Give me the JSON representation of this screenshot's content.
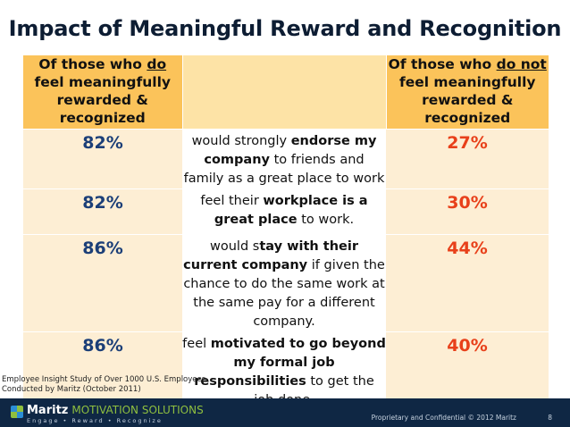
{
  "slide": {
    "title": "Impact of Meaningful Reward and Recognition",
    "header": {
      "left": {
        "pre": "Of those who ",
        "underlined": "do",
        "post": " feel meaningfully rewarded & recognized"
      },
      "right": {
        "pre": "Of those who ",
        "underlined": "do not",
        "post": " feel meaningfully rewarded & recognized"
      }
    },
    "rows": [
      {
        "left_pct": "82%",
        "right_pct": "27%",
        "desc": [
          {
            "text": "would strongly ",
            "bold": false
          },
          {
            "text": "endorse my company",
            "bold": true
          },
          {
            "text": " to friends and family as a great place to work",
            "bold": false
          }
        ]
      },
      {
        "left_pct": "82%",
        "right_pct": "30%",
        "desc": [
          {
            "text": "feel their ",
            "bold": false
          },
          {
            "text": "workplace is a great place",
            "bold": true
          },
          {
            "text": " to work.",
            "bold": false
          }
        ]
      },
      {
        "left_pct": "86%",
        "right_pct": "44%",
        "desc": [
          {
            "text": "would s",
            "bold": false
          },
          {
            "text": "tay with their current company",
            "bold": true
          },
          {
            "text": " if given the chance to do the same work at the same pay for a different company.",
            "bold": false
          }
        ]
      },
      {
        "left_pct": "86%",
        "right_pct": "40%",
        "desc": [
          {
            "text": "feel ",
            "bold": false
          },
          {
            "text": "motivated to go beyond my formal job responsibilities",
            "bold": true
          },
          {
            "text": " to get the job done.",
            "bold": false
          }
        ]
      }
    ],
    "footnote": {
      "line1": "Employee Insight Study of Over 1000 U.S. Employees",
      "line2": "Conducted by Maritz (October 2011)"
    }
  },
  "footer": {
    "brand": "Maritz",
    "brand_sub": "MOTIVATION SOLUTIONS",
    "tagline": "Engage • Reward • Recognize",
    "proprietary": "Proprietary and Confidential © 2012 Maritz",
    "page_number": "8"
  },
  "colors": {
    "header_fill": "#fbc35a",
    "row_fill": "#fdeed4",
    "left_pct": "#1c3f78",
    "right_pct": "#e8401a",
    "footer_bg": "#0f2744"
  }
}
